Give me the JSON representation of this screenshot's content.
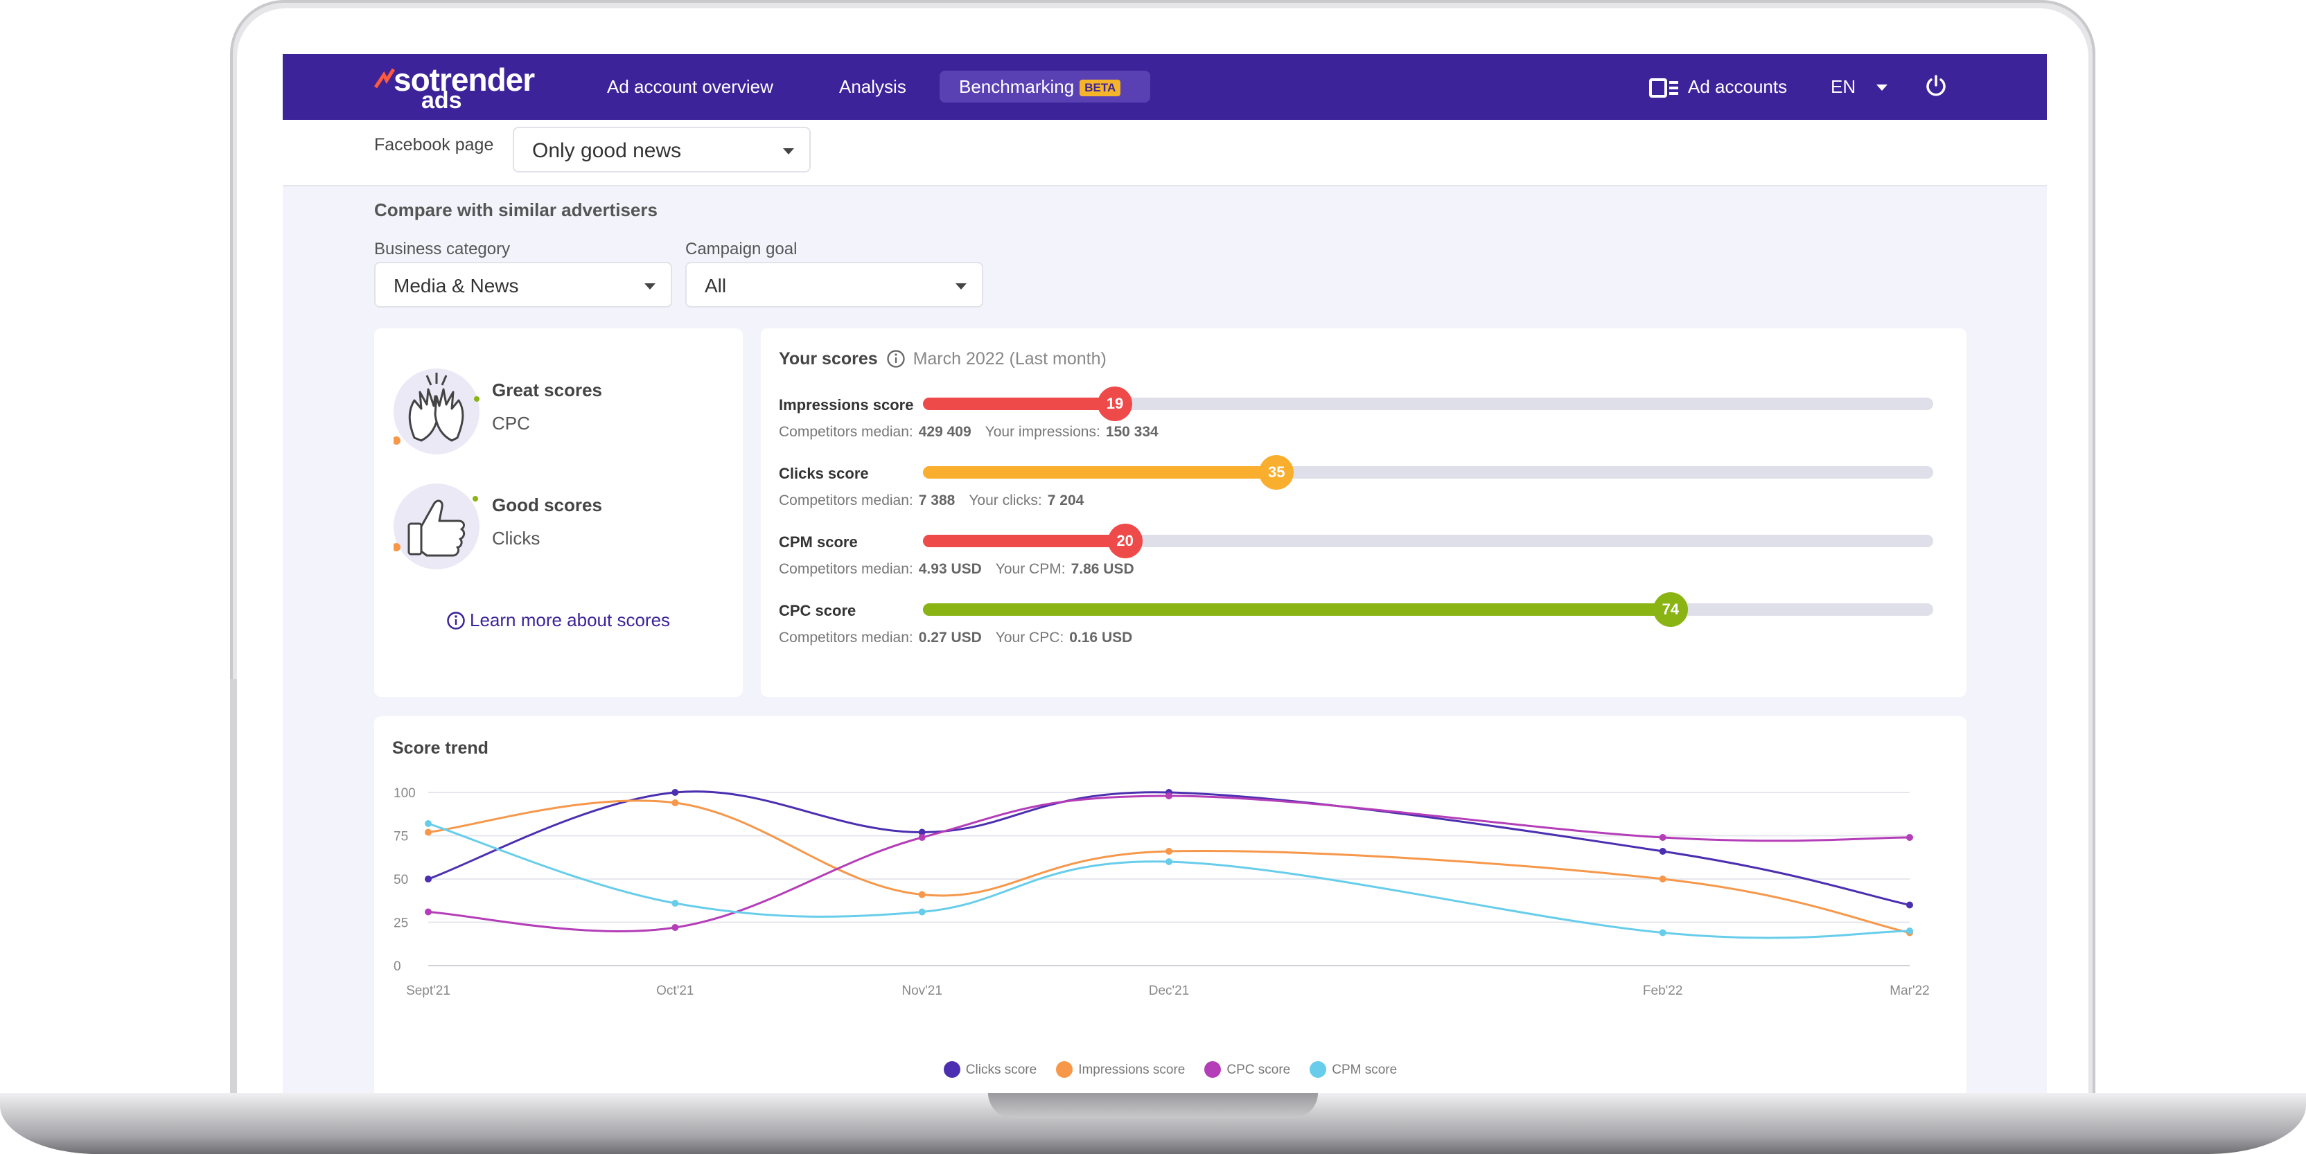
{
  "nav": {
    "logo_main": "sotrender",
    "logo_sub": "ads",
    "items": [
      {
        "label": "Ad account overview"
      },
      {
        "label": "Analysis"
      },
      {
        "label": "Benchmarking",
        "badge": "BETA"
      }
    ],
    "ad_accounts": "Ad accounts",
    "language": "EN"
  },
  "filters": {
    "facebook_page_label": "Facebook page",
    "facebook_page_value": "Only good news",
    "compare_title": "Compare with similar advertisers",
    "business_category_label": "Business category",
    "business_category_value": "Media & News",
    "campaign_goal_label": "Campaign goal",
    "campaign_goal_value": "All"
  },
  "summary": {
    "great_title": "Great scores",
    "great_value": "CPC",
    "good_title": "Good scores",
    "good_value": "Clicks",
    "learn_more": "Learn more about scores"
  },
  "scores": {
    "title": "Your scores",
    "period": "March 2022 (Last month)",
    "items": [
      {
        "label": "Impressions score",
        "value": 19,
        "display": "19",
        "color": "#ee4a4a",
        "median_label": "Competitors median:",
        "median": "429 409",
        "yours_label": "Your impressions:",
        "yours": "150 334"
      },
      {
        "label": "Clicks score",
        "value": 35,
        "display": "35",
        "color": "#f9ae2e",
        "median_label": "Competitors median:",
        "median": "7 388",
        "yours_label": "Your clicks:",
        "yours": "7 204"
      },
      {
        "label": "CPM score",
        "value": 20,
        "display": "20",
        "color": "#ee4a4a",
        "median_label": "Competitors median:",
        "median": "4.93 USD",
        "yours_label": "Your CPM:",
        "yours": "7.86 USD"
      },
      {
        "label": "CPC score",
        "value": 74,
        "display": "74",
        "color": "#8ab314",
        "median_label": "Competitors median:",
        "median": "0.27 USD",
        "yours_label": "Your CPC:",
        "yours": "0.16 USD"
      }
    ]
  },
  "chart_data": {
    "type": "line",
    "title": "Score trend",
    "categories": [
      "Sept'21",
      "Oct'21",
      "Nov'21",
      "Dec'21",
      "Feb'22",
      "Mar'22"
    ],
    "x": [
      0,
      1,
      2,
      3,
      5,
      6
    ],
    "ylim": [
      0,
      100
    ],
    "yticks": [
      0,
      25,
      50,
      75,
      100
    ],
    "legend_position": "bottom-center",
    "series": [
      {
        "name": "Clicks score",
        "color": "#4b2fb0",
        "values": [
          50,
          100,
          77,
          100,
          66,
          35
        ]
      },
      {
        "name": "Impressions score",
        "color": "#f6974a",
        "values": [
          77,
          94,
          41,
          66,
          50,
          19
        ]
      },
      {
        "name": "CPC score",
        "color": "#b43db8",
        "values": [
          31,
          22,
          74,
          98,
          74,
          74
        ]
      },
      {
        "name": "CPM score",
        "color": "#67cdea",
        "values": [
          82,
          36,
          31,
          60,
          19,
          20
        ]
      }
    ]
  }
}
